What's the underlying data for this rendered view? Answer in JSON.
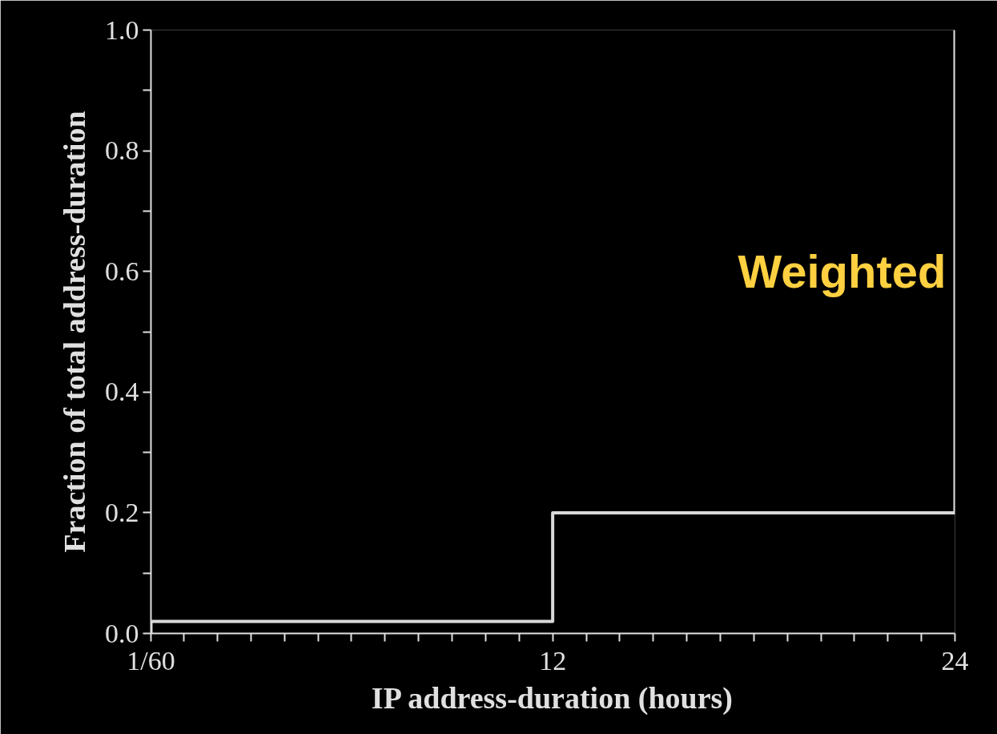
{
  "chart_data": {
    "type": "step",
    "xlabel": "IP address-duration (hours)",
    "ylabel": "Fraction of total address-duration",
    "annotations": [
      "Weighted"
    ],
    "x": [
      0.0167,
      0.0167,
      12,
      24,
      24
    ],
    "series": [
      {
        "color": "#d9d9d9",
        "values": [
          0,
          0.02,
          0.2,
          0.2,
          1.0
        ]
      }
    ],
    "xlim": [
      0.0167,
      24
    ],
    "xticks": [
      {
        "value": 0.0167,
        "label": "1/60"
      },
      {
        "value": 1,
        "label": null
      },
      {
        "value": 2,
        "label": null
      },
      {
        "value": 3,
        "label": null
      },
      {
        "value": 4,
        "label": null
      },
      {
        "value": 5,
        "label": null
      },
      {
        "value": 6,
        "label": null
      },
      {
        "value": 7,
        "label": null
      },
      {
        "value": 8,
        "label": null
      },
      {
        "value": 9,
        "label": null
      },
      {
        "value": 10,
        "label": null
      },
      {
        "value": 11,
        "label": null
      },
      12,
      {
        "value": 13,
        "label": null
      },
      {
        "value": 14,
        "label": null
      },
      {
        "value": 15,
        "label": null
      },
      {
        "value": 16,
        "label": null
      },
      {
        "value": 17,
        "label": null
      },
      {
        "value": 18,
        "label": null
      },
      {
        "value": 19,
        "label": null
      },
      {
        "value": 20,
        "label": null
      },
      {
        "value": 21,
        "label": null
      },
      {
        "value": 22,
        "label": null
      },
      {
        "value": 23,
        "label": null
      },
      24
    ],
    "ylim": [
      0,
      1.0
    ],
    "yticks": [
      {
        "value": 0,
        "label": "0.0"
      },
      {
        "value": 0.1,
        "label": null
      },
      {
        "value": 0.2,
        "label": "0.2"
      },
      {
        "value": 0.3,
        "label": null
      },
      {
        "value": 0.4,
        "label": "0.4"
      },
      {
        "value": 0.5,
        "label": null
      },
      {
        "value": 0.6,
        "label": "0.6"
      },
      {
        "value": 0.7,
        "label": null
      },
      {
        "value": 0.8,
        "label": "0.8"
      },
      {
        "value": 0.9,
        "label": null
      },
      {
        "value": 1.0,
        "label": "1.0"
      }
    ],
    "grid": false
  }
}
